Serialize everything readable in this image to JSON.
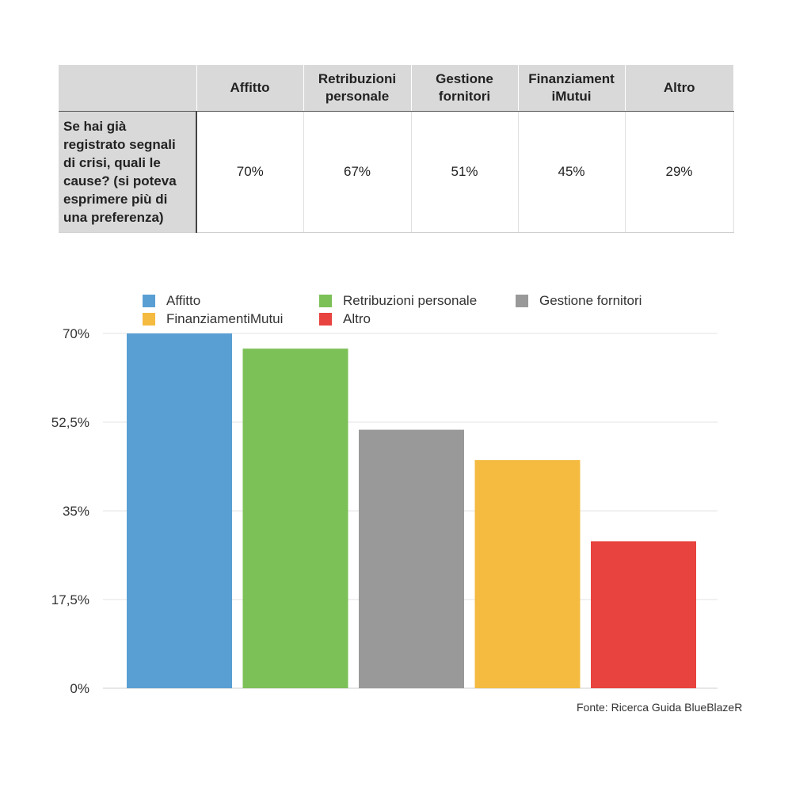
{
  "table": {
    "headers": [
      "",
      "Affitto",
      "Retribuzioni personale",
      "Gestione fornitori",
      "FinanziamentiMutui",
      "Altro"
    ],
    "header_lines": [
      [
        ""
      ],
      [
        "Affitto"
      ],
      [
        "Retribuzioni",
        "personale"
      ],
      [
        "Gestione",
        "fornitori"
      ],
      [
        "Finanziament",
        "iMutui"
      ],
      [
        "Altro"
      ]
    ],
    "row_label_lines": [
      "Se hai già",
      "registrato segnali",
      "di crisi, quali le",
      "cause? (si poteva",
      "esprimere più di",
      "una preferenza)"
    ],
    "values": [
      "70%",
      "67%",
      "51%",
      "45%",
      "29%"
    ]
  },
  "chart_data": {
    "type": "bar",
    "categories": [
      "Affitto",
      "Retribuzioni personale",
      "Gestione fornitori",
      "FinanziamentiMutui",
      "Altro"
    ],
    "values": [
      70,
      67,
      51,
      45,
      29
    ],
    "colors": [
      "#5a9fd4",
      "#7cc058",
      "#999999",
      "#f4bb40",
      "#e8433e"
    ],
    "ylim": [
      0,
      70
    ],
    "yticks": [
      0,
      17.5,
      35,
      52.5,
      70
    ],
    "ytick_labels": [
      "0%",
      "17,5%",
      "35%",
      "52,5%",
      "70%"
    ],
    "legend": [
      "Affitto",
      "Retribuzioni personale",
      "Gestione fornitori",
      "FinanziamentiMutui",
      "Altro"
    ],
    "legend_position": "top",
    "grid": true,
    "title": "",
    "xlabel": "",
    "ylabel": ""
  },
  "source": "Fonte: Ricerca Guida BlueBlazeR"
}
